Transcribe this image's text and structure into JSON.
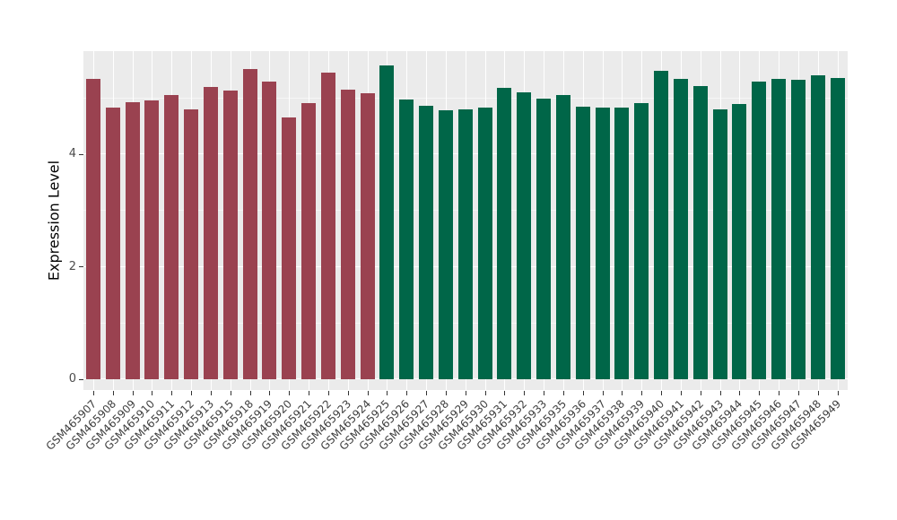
{
  "chart_data": {
    "type": "bar",
    "title": "",
    "xlabel": "",
    "ylabel": "Expression Level",
    "ylim": [
      0,
      5.83
    ],
    "yticks": [
      {
        "label": "0",
        "value": 0
      },
      {
        "label": "2",
        "value": 2
      },
      {
        "label": "4",
        "value": 4
      }
    ],
    "minor_gridlines": [
      1,
      3,
      5
    ],
    "grid": true,
    "legend_position": "none",
    "panel_background": "#EBEBEB",
    "gridline_color": "#FFFFFF",
    "axis_text_color": "#4D4D4D",
    "x_label_rotation_deg": 45,
    "categories": [
      "GSM465907",
      "GSM465908",
      "GSM465909",
      "GSM465910",
      "GSM465911",
      "GSM465912",
      "GSM465913",
      "GSM465915",
      "GSM465918",
      "GSM465919",
      "GSM465920",
      "GSM465921",
      "GSM465922",
      "GSM465923",
      "GSM465924",
      "GSM465925",
      "GSM465926",
      "GSM465927",
      "GSM465928",
      "GSM465929",
      "GSM465930",
      "GSM465931",
      "GSM465932",
      "GSM465933",
      "GSM465935",
      "GSM465936",
      "GSM465937",
      "GSM465938",
      "GSM465939",
      "GSM465940",
      "GSM465941",
      "GSM465942",
      "GSM465943",
      "GSM465944",
      "GSM465945",
      "GSM465946",
      "GSM465947",
      "GSM465948",
      "GSM465949"
    ],
    "values": [
      5.33,
      4.83,
      4.92,
      4.95,
      5.05,
      4.8,
      5.19,
      5.13,
      5.51,
      5.29,
      4.65,
      4.91,
      5.44,
      5.15,
      5.08,
      5.57,
      4.97,
      4.86,
      4.77,
      4.79,
      4.82,
      5.17,
      5.09,
      4.99,
      5.05,
      4.84,
      4.83,
      4.82,
      4.91,
      5.48,
      5.34,
      5.21,
      4.8,
      4.89,
      5.29,
      5.34,
      5.31,
      5.39,
      5.35
    ],
    "color_groups": [
      {
        "color": "#9A4250",
        "count": 15
      },
      {
        "color": "#006648",
        "count": 24
      }
    ]
  }
}
